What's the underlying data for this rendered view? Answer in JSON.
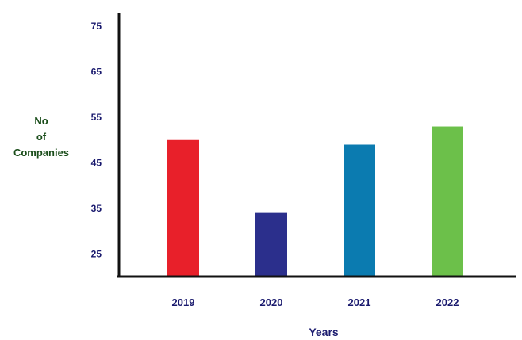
{
  "chart_data": {
    "type": "bar",
    "categories": [
      "2019",
      "2020",
      "2021",
      "2022"
    ],
    "values": [
      50,
      34,
      49,
      53
    ],
    "colors": [
      "#e8202a",
      "#2b2f8c",
      "#0b7bb0",
      "#6cc04a"
    ],
    "xlabel": "Years",
    "ylabel_lines": [
      "No",
      "of",
      "Companies"
    ],
    "yticks": [
      75,
      65,
      55,
      45,
      35,
      25
    ],
    "ylim": [
      20,
      78
    ],
    "grid": false
  }
}
